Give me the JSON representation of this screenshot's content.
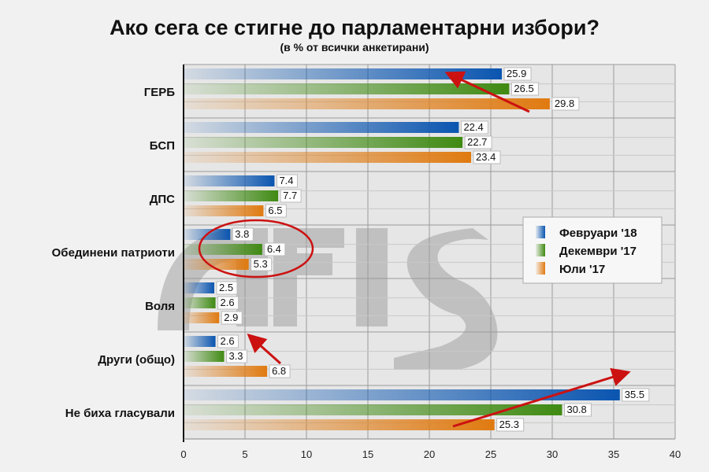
{
  "chart_data": {
    "type": "bar",
    "orientation": "horizontal",
    "title": "Ако сега се стигне до парламентарни избори?",
    "subtitle": "(в % от всички анкетирани)",
    "categories": [
      "ГЕРБ",
      "БСП",
      "ДПС",
      "Обединени патриоти",
      "Воля",
      "Други (общо)",
      "Не биха гласували"
    ],
    "series": [
      {
        "name": "Февруари '18",
        "color": "#0a55b0",
        "values": [
          25.9,
          22.4,
          7.4,
          3.8,
          2.5,
          2.6,
          35.5
        ]
      },
      {
        "name": "Декември '17",
        "color": "#3f8a12",
        "values": [
          26.5,
          22.7,
          7.7,
          6.4,
          2.6,
          3.3,
          30.8
        ]
      },
      {
        "name": "Юли '17",
        "color": "#e07a10",
        "values": [
          29.8,
          23.4,
          6.5,
          5.3,
          2.9,
          6.8,
          25.3
        ]
      }
    ],
    "xlim": [
      0,
      40
    ],
    "xticks": [
      0,
      5,
      10,
      15,
      20,
      25,
      30,
      35,
      40
    ],
    "grid": true,
    "legend": "right",
    "data_labels": true,
    "watermark": "afis"
  }
}
